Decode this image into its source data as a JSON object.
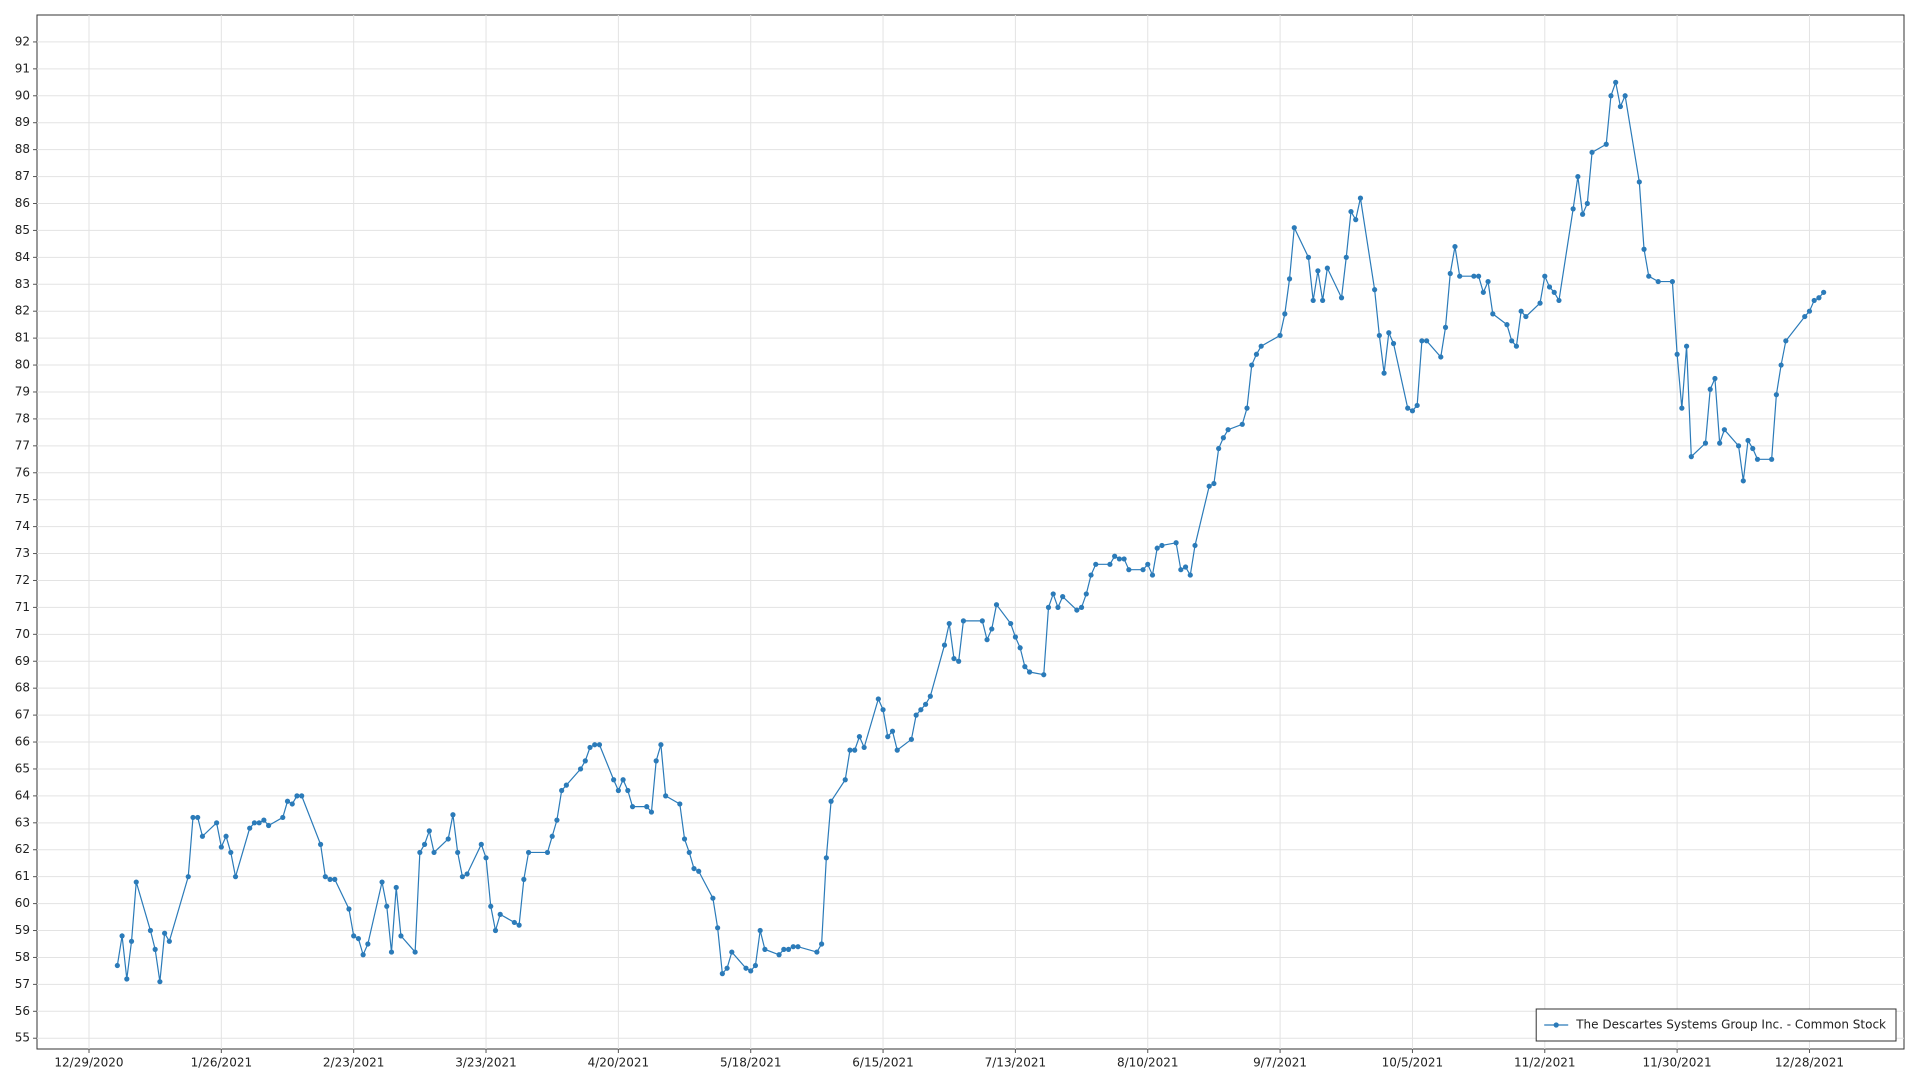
{
  "chart_data": {
    "type": "line",
    "x": [
      "1/4/2021",
      "1/5/2021",
      "1/6/2021",
      "1/7/2021",
      "1/8/2021",
      "1/11/2021",
      "1/12/2021",
      "1/13/2021",
      "1/14/2021",
      "1/15/2021",
      "1/19/2021",
      "1/20/2021",
      "1/21/2021",
      "1/22/2021",
      "1/25/2021",
      "1/26/2021",
      "1/27/2021",
      "1/28/2021",
      "1/29/2021",
      "2/1/2021",
      "2/2/2021",
      "2/3/2021",
      "2/4/2021",
      "2/5/2021",
      "2/8/2021",
      "2/9/2021",
      "2/10/2021",
      "2/11/2021",
      "2/12/2021",
      "2/16/2021",
      "2/17/2021",
      "2/18/2021",
      "2/19/2021",
      "2/22/2021",
      "2/23/2021",
      "2/24/2021",
      "2/25/2021",
      "2/26/2021",
      "3/1/2021",
      "3/2/2021",
      "3/3/2021",
      "3/4/2021",
      "3/5/2021",
      "3/8/2021",
      "3/9/2021",
      "3/10/2021",
      "3/11/2021",
      "3/12/2021",
      "3/15/2021",
      "3/16/2021",
      "3/17/2021",
      "3/18/2021",
      "3/19/2021",
      "3/22/2021",
      "3/23/2021",
      "3/24/2021",
      "3/25/2021",
      "3/26/2021",
      "3/29/2021",
      "3/30/2021",
      "3/31/2021",
      "4/1/2021",
      "4/5/2021",
      "4/6/2021",
      "4/7/2021",
      "4/8/2021",
      "4/9/2021",
      "4/12/2021",
      "4/13/2021",
      "4/14/2021",
      "4/15/2021",
      "4/16/2021",
      "4/19/2021",
      "4/20/2021",
      "4/21/2021",
      "4/22/2021",
      "4/23/2021",
      "4/26/2021",
      "4/27/2021",
      "4/28/2021",
      "4/29/2021",
      "4/30/2021",
      "5/3/2021",
      "5/4/2021",
      "5/5/2021",
      "5/6/2021",
      "5/7/2021",
      "5/10/2021",
      "5/11/2021",
      "5/12/2021",
      "5/13/2021",
      "5/14/2021",
      "5/17/2021",
      "5/18/2021",
      "5/19/2021",
      "5/20/2021",
      "5/21/2021",
      "5/24/2021",
      "5/25/2021",
      "5/26/2021",
      "5/27/2021",
      "5/28/2021",
      "6/1/2021",
      "6/2/2021",
      "6/3/2021",
      "6/4/2021",
      "6/7/2021",
      "6/8/2021",
      "6/9/2021",
      "6/10/2021",
      "6/11/2021",
      "6/14/2021",
      "6/15/2021",
      "6/16/2021",
      "6/17/2021",
      "6/18/2021",
      "6/21/2021",
      "6/22/2021",
      "6/23/2021",
      "6/24/2021",
      "6/25/2021",
      "6/28/2021",
      "6/29/2021",
      "6/30/2021",
      "7/1/2021",
      "7/2/2021",
      "7/6/2021",
      "7/7/2021",
      "7/8/2021",
      "7/9/2021",
      "7/12/2021",
      "7/13/2021",
      "7/14/2021",
      "7/15/2021",
      "7/16/2021",
      "7/19/2021",
      "7/20/2021",
      "7/21/2021",
      "7/22/2021",
      "7/23/2021",
      "7/26/2021",
      "7/27/2021",
      "7/28/2021",
      "7/29/2021",
      "7/30/2021",
      "8/2/2021",
      "8/3/2021",
      "8/4/2021",
      "8/5/2021",
      "8/6/2021",
      "8/9/2021",
      "8/10/2021",
      "8/11/2021",
      "8/12/2021",
      "8/13/2021",
      "8/16/2021",
      "8/17/2021",
      "8/18/2021",
      "8/19/2021",
      "8/20/2021",
      "8/23/2021",
      "8/24/2021",
      "8/25/2021",
      "8/26/2021",
      "8/27/2021",
      "8/30/2021",
      "8/31/2021",
      "9/1/2021",
      "9/2/2021",
      "9/3/2021",
      "9/7/2021",
      "9/8/2021",
      "9/9/2021",
      "9/10/2021",
      "9/13/2021",
      "9/14/2021",
      "9/15/2021",
      "9/16/2021",
      "9/17/2021",
      "9/20/2021",
      "9/21/2021",
      "9/22/2021",
      "9/23/2021",
      "9/24/2021",
      "9/27/2021",
      "9/28/2021",
      "9/29/2021",
      "9/30/2021",
      "10/1/2021",
      "10/4/2021",
      "10/5/2021",
      "10/6/2021",
      "10/7/2021",
      "10/8/2021",
      "10/11/2021",
      "10/12/2021",
      "10/13/2021",
      "10/14/2021",
      "10/15/2021",
      "10/18/2021",
      "10/19/2021",
      "10/20/2021",
      "10/21/2021",
      "10/22/2021",
      "10/25/2021",
      "10/26/2021",
      "10/27/2021",
      "10/28/2021",
      "10/29/2021",
      "11/1/2021",
      "11/2/2021",
      "11/3/2021",
      "11/4/2021",
      "11/5/2021",
      "11/8/2021",
      "11/9/2021",
      "11/10/2021",
      "11/11/2021",
      "11/12/2021",
      "11/15/2021",
      "11/16/2021",
      "11/17/2021",
      "11/18/2021",
      "11/19/2021",
      "11/22/2021",
      "11/23/2021",
      "11/24/2021",
      "11/26/2021",
      "11/29/2021",
      "11/30/2021",
      "12/1/2021",
      "12/2/2021",
      "12/3/2021",
      "12/6/2021",
      "12/7/2021",
      "12/8/2021",
      "12/9/2021",
      "12/10/2021",
      "12/13/2021",
      "12/14/2021",
      "12/15/2021",
      "12/16/2021",
      "12/17/2021",
      "12/20/2021",
      "12/21/2021",
      "12/22/2021",
      "12/23/2021",
      "12/27/2021",
      "12/28/2021",
      "12/29/2021",
      "12/30/2021",
      "12/31/2021"
    ],
    "series": [
      {
        "name": "The Descartes Systems Group Inc. - Common Stock",
        "color": "#2b7bb9",
        "values": [
          57.7,
          58.8,
          57.2,
          58.6,
          60.8,
          59.0,
          58.3,
          57.1,
          58.9,
          58.6,
          61.0,
          63.2,
          63.2,
          62.5,
          63.0,
          62.1,
          62.5,
          61.9,
          61.0,
          62.8,
          63.0,
          63.0,
          63.1,
          62.9,
          63.2,
          63.8,
          63.7,
          64.0,
          64.0,
          62.2,
          61.0,
          60.9,
          60.9,
          59.8,
          58.8,
          58.7,
          58.1,
          58.5,
          60.8,
          59.9,
          58.2,
          60.6,
          58.8,
          58.2,
          61.9,
          62.2,
          62.7,
          61.9,
          62.4,
          63.3,
          61.9,
          61.0,
          61.1,
          62.2,
          61.7,
          59.9,
          59.0,
          59.6,
          59.3,
          59.2,
          60.9,
          61.9,
          61.9,
          62.5,
          63.1,
          64.2,
          64.4,
          65.0,
          65.3,
          65.8,
          65.9,
          65.9,
          64.6,
          64.2,
          64.6,
          64.2,
          63.6,
          63.6,
          63.4,
          65.3,
          65.9,
          64.0,
          63.7,
          62.4,
          61.9,
          61.3,
          61.2,
          60.2,
          59.1,
          57.4,
          57.6,
          58.2,
          57.6,
          57.5,
          57.7,
          59.0,
          58.3,
          58.1,
          58.3,
          58.3,
          58.4,
          58.4,
          58.2,
          58.5,
          61.7,
          63.8,
          64.6,
          65.7,
          65.7,
          66.2,
          65.8,
          67.6,
          67.2,
          66.2,
          66.4,
          65.7,
          66.1,
          67.0,
          67.2,
          67.4,
          67.7,
          69.6,
          70.4,
          69.1,
          69.0,
          70.5,
          70.5,
          69.8,
          70.2,
          71.1,
          70.4,
          69.9,
          69.5,
          68.8,
          68.6,
          68.5,
          71.0,
          71.5,
          71.0,
          71.4,
          70.9,
          71.0,
          71.5,
          72.2,
          72.6,
          72.6,
          72.9,
          72.8,
          72.8,
          72.4,
          72.4,
          72.6,
          72.2,
          73.2,
          73.3,
          73.4,
          72.4,
          72.5,
          72.2,
          73.3,
          75.5,
          75.6,
          76.9,
          77.3,
          77.6,
          77.8,
          78.4,
          80.0,
          80.4,
          80.7,
          81.1,
          81.9,
          83.2,
          85.1,
          84.0,
          82.4,
          83.5,
          82.4,
          83.6,
          82.5,
          84.0,
          85.7,
          85.4,
          86.2,
          82.8,
          81.1,
          79.7,
          81.2,
          80.8,
          78.4,
          78.3,
          78.5,
          80.9,
          80.9,
          80.3,
          81.4,
          83.4,
          84.4,
          83.3,
          83.3,
          83.3,
          82.7,
          83.1,
          81.9,
          81.5,
          80.9,
          80.7,
          82.0,
          81.8,
          82.3,
          83.3,
          82.9,
          82.7,
          82.4,
          85.8,
          87.0,
          85.6,
          86.0,
          87.9,
          88.2,
          90.0,
          90.5,
          89.6,
          90.0,
          86.8,
          84.3,
          83.3,
          83.1,
          83.1,
          80.4,
          78.4,
          80.7,
          76.6,
          77.1,
          79.1,
          79.5,
          77.1,
          77.6,
          77.0,
          75.7,
          77.2,
          76.9,
          76.5,
          76.5,
          78.9,
          80.0,
          80.9,
          81.8,
          82.0,
          82.4,
          82.5,
          82.7
        ]
      }
    ],
    "xlim": [
      "12/18/2020",
      "1/17/2022"
    ],
    "xticks": [
      "12/29/2020",
      "1/26/2021",
      "2/23/2021",
      "3/23/2021",
      "4/20/2021",
      "5/18/2021",
      "6/15/2021",
      "7/13/2021",
      "8/10/2021",
      "9/7/2021",
      "10/5/2021",
      "11/2/2021",
      "11/30/2021",
      "12/28/2021"
    ],
    "ylim": [
      54.6,
      93
    ],
    "yticks": [
      55,
      56,
      57,
      58,
      59,
      60,
      61,
      62,
      63,
      64,
      65,
      66,
      67,
      68,
      69,
      70,
      71,
      72,
      73,
      74,
      75,
      76,
      77,
      78,
      79,
      80,
      81,
      82,
      83,
      84,
      85,
      86,
      87,
      88,
      89,
      90,
      91,
      92
    ],
    "grid": true,
    "legend": "lower right"
  }
}
